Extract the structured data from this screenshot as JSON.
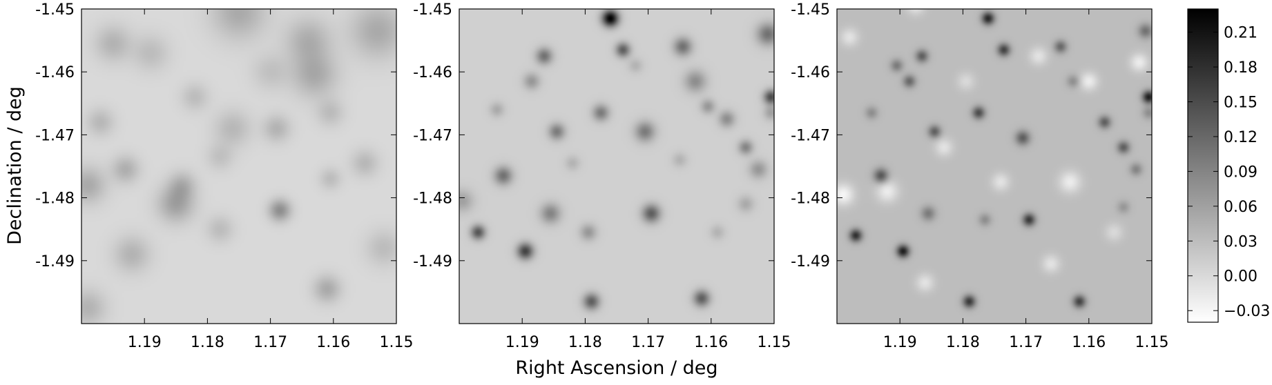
{
  "chart_data": {
    "type": "heatmap",
    "colormap": "gray_r",
    "xlabel": "Right Ascension / deg",
    "ylabel": "Declination / deg",
    "xlim": [
      1.2,
      1.15
    ],
    "ylim": [
      -1.5,
      -1.45
    ],
    "x_ticks": [
      1.19,
      1.18,
      1.17,
      1.16,
      1.15
    ],
    "x_tick_labels": [
      "1.19",
      "1.18",
      "1.17",
      "1.16",
      "1.15"
    ],
    "y_ticks": [
      -1.45,
      -1.46,
      -1.47,
      -1.48,
      -1.49
    ],
    "y_tick_labels": [
      "-1.45",
      "-1.46",
      "-1.47",
      "-1.48",
      "-1.49"
    ],
    "colorbar": {
      "range": [
        -0.04,
        0.23
      ],
      "ticks": [
        0.21,
        0.18,
        0.15,
        0.12,
        0.09,
        0.06,
        0.03,
        0.0,
        -0.03
      ],
      "tick_labels": [
        "0.21",
        "0.18",
        "0.15",
        "0.12",
        "0.09",
        "0.06",
        "0.03",
        "0.00",
        "−0.03"
      ]
    },
    "panels": [
      {
        "background": 0.0,
        "sources": [
          {
            "x": 1.175,
            "y": -1.4505,
            "amp": 0.05,
            "s": 0.003
          },
          {
            "x": 1.195,
            "y": -1.4555,
            "amp": 0.04,
            "s": 0.002
          },
          {
            "x": 1.189,
            "y": -1.457,
            "amp": 0.03,
            "s": 0.002
          },
          {
            "x": 1.164,
            "y": -1.455,
            "amp": 0.045,
            "s": 0.0025
          },
          {
            "x": 1.163,
            "y": -1.4605,
            "amp": 0.05,
            "s": 0.0025
          },
          {
            "x": 1.153,
            "y": -1.4535,
            "amp": 0.05,
            "s": 0.003
          },
          {
            "x": 1.182,
            "y": -1.464,
            "amp": 0.03,
            "s": 0.0015
          },
          {
            "x": 1.17,
            "y": -1.46,
            "amp": 0.025,
            "s": 0.002
          },
          {
            "x": 1.197,
            "y": -1.468,
            "amp": 0.035,
            "s": 0.0015
          },
          {
            "x": 1.176,
            "y": -1.469,
            "amp": 0.035,
            "s": 0.002
          },
          {
            "x": 1.169,
            "y": -1.469,
            "amp": 0.04,
            "s": 0.0015
          },
          {
            "x": 1.1605,
            "y": -1.4665,
            "amp": 0.03,
            "s": 0.0015
          },
          {
            "x": 1.155,
            "y": -1.4745,
            "amp": 0.035,
            "s": 0.0015
          },
          {
            "x": 1.193,
            "y": -1.4755,
            "amp": 0.045,
            "s": 0.0015
          },
          {
            "x": 1.199,
            "y": -1.478,
            "amp": 0.05,
            "s": 0.002
          },
          {
            "x": 1.185,
            "y": -1.481,
            "amp": 0.06,
            "s": 0.002
          },
          {
            "x": 1.184,
            "y": -1.478,
            "amp": 0.04,
            "s": 0.0015
          },
          {
            "x": 1.1685,
            "y": -1.482,
            "amp": 0.08,
            "s": 0.0012
          },
          {
            "x": 1.1605,
            "y": -1.477,
            "amp": 0.03,
            "s": 0.0012
          },
          {
            "x": 1.178,
            "y": -1.485,
            "amp": 0.03,
            "s": 0.0015
          },
          {
            "x": 1.192,
            "y": -1.489,
            "amp": 0.04,
            "s": 0.002
          },
          {
            "x": 1.161,
            "y": -1.4945,
            "amp": 0.05,
            "s": 0.0015
          },
          {
            "x": 1.199,
            "y": -1.4975,
            "amp": 0.04,
            "s": 0.002
          },
          {
            "x": 1.152,
            "y": -1.488,
            "amp": 0.03,
            "s": 0.002
          },
          {
            "x": 1.178,
            "y": -1.4735,
            "amp": 0.025,
            "s": 0.0015
          }
        ]
      },
      {
        "background": 0.01,
        "sources": [
          {
            "x": 1.176,
            "y": -1.4515,
            "amp": 0.22,
            "s": 0.0009
          },
          {
            "x": 1.174,
            "y": -1.4565,
            "amp": 0.12,
            "s": 0.0008
          },
          {
            "x": 1.1865,
            "y": -1.4575,
            "amp": 0.1,
            "s": 0.0009
          },
          {
            "x": 1.1645,
            "y": -1.456,
            "amp": 0.1,
            "s": 0.001
          },
          {
            "x": 1.151,
            "y": -1.454,
            "amp": 0.1,
            "s": 0.0012
          },
          {
            "x": 1.1885,
            "y": -1.4615,
            "amp": 0.06,
            "s": 0.0009
          },
          {
            "x": 1.1625,
            "y": -1.4615,
            "amp": 0.07,
            "s": 0.0012
          },
          {
            "x": 1.1505,
            "y": -1.464,
            "amp": 0.14,
            "s": 0.0008
          },
          {
            "x": 1.1775,
            "y": -1.4665,
            "amp": 0.09,
            "s": 0.0009
          },
          {
            "x": 1.1605,
            "y": -1.4655,
            "amp": 0.06,
            "s": 0.0008
          },
          {
            "x": 1.1575,
            "y": -1.4675,
            "amp": 0.07,
            "s": 0.0009
          },
          {
            "x": 1.1845,
            "y": -1.4695,
            "amp": 0.09,
            "s": 0.0009
          },
          {
            "x": 1.1705,
            "y": -1.4695,
            "amp": 0.09,
            "s": 0.0011
          },
          {
            "x": 1.1545,
            "y": -1.472,
            "amp": 0.08,
            "s": 0.0008
          },
          {
            "x": 1.193,
            "y": -1.4765,
            "amp": 0.1,
            "s": 0.001
          },
          {
            "x": 1.1525,
            "y": -1.4755,
            "amp": 0.06,
            "s": 0.001
          },
          {
            "x": 1.1855,
            "y": -1.4825,
            "amp": 0.08,
            "s": 0.0011
          },
          {
            "x": 1.1695,
            "y": -1.4825,
            "amp": 0.12,
            "s": 0.001
          },
          {
            "x": 1.197,
            "y": -1.4855,
            "amp": 0.13,
            "s": 0.0008
          },
          {
            "x": 1.1895,
            "y": -1.4885,
            "amp": 0.15,
            "s": 0.0009
          },
          {
            "x": 1.1795,
            "y": -1.4855,
            "amp": 0.06,
            "s": 0.0009
          },
          {
            "x": 1.179,
            "y": -1.4965,
            "amp": 0.12,
            "s": 0.0009
          },
          {
            "x": 1.1615,
            "y": -1.496,
            "amp": 0.12,
            "s": 0.0009
          },
          {
            "x": 1.1545,
            "y": -1.481,
            "amp": 0.04,
            "s": 0.0009
          },
          {
            "x": 1.194,
            "y": -1.466,
            "amp": 0.04,
            "s": 0.0008
          },
          {
            "x": 1.1995,
            "y": -1.4805,
            "amp": 0.05,
            "s": 0.0012
          },
          {
            "x": 1.1505,
            "y": -1.4665,
            "amp": 0.05,
            "s": 0.0008
          },
          {
            "x": 1.172,
            "y": -1.459,
            "amp": 0.03,
            "s": 0.0008
          },
          {
            "x": 1.182,
            "y": -1.4745,
            "amp": 0.03,
            "s": 0.0008
          },
          {
            "x": 1.165,
            "y": -1.474,
            "amp": 0.03,
            "s": 0.0008
          },
          {
            "x": 1.159,
            "y": -1.4855,
            "amp": 0.03,
            "s": 0.0008
          }
        ]
      },
      {
        "background": 0.03,
        "sources": [
          {
            "x": 1.176,
            "y": -1.4515,
            "amp": 0.16,
            "s": 0.0007
          },
          {
            "x": 1.1735,
            "y": -1.4565,
            "amp": 0.13,
            "s": 0.0007
          },
          {
            "x": 1.1865,
            "y": -1.4575,
            "amp": 0.1,
            "s": 0.0007
          },
          {
            "x": 1.1645,
            "y": -1.456,
            "amp": 0.09,
            "s": 0.0007
          },
          {
            "x": 1.151,
            "y": -1.4535,
            "amp": 0.08,
            "s": 0.0008
          },
          {
            "x": 1.1885,
            "y": -1.4615,
            "amp": 0.09,
            "s": 0.0007
          },
          {
            "x": 1.1905,
            "y": -1.459,
            "amp": 0.07,
            "s": 0.0007
          },
          {
            "x": 1.1505,
            "y": -1.464,
            "amp": 0.17,
            "s": 0.0007
          },
          {
            "x": 1.1775,
            "y": -1.4665,
            "amp": 0.12,
            "s": 0.0007
          },
          {
            "x": 1.1575,
            "y": -1.468,
            "amp": 0.1,
            "s": 0.0007
          },
          {
            "x": 1.1845,
            "y": -1.4695,
            "amp": 0.1,
            "s": 0.0007
          },
          {
            "x": 1.1705,
            "y": -1.4705,
            "amp": 0.1,
            "s": 0.0008
          },
          {
            "x": 1.1545,
            "y": -1.472,
            "amp": 0.1,
            "s": 0.0007
          },
          {
            "x": 1.193,
            "y": -1.4765,
            "amp": 0.11,
            "s": 0.0008
          },
          {
            "x": 1.1525,
            "y": -1.4755,
            "amp": 0.06,
            "s": 0.0007
          },
          {
            "x": 1.1855,
            "y": -1.4825,
            "amp": 0.07,
            "s": 0.0008
          },
          {
            "x": 1.1695,
            "y": -1.4835,
            "amp": 0.14,
            "s": 0.0007
          },
          {
            "x": 1.197,
            "y": -1.486,
            "amp": 0.15,
            "s": 0.0007
          },
          {
            "x": 1.1895,
            "y": -1.4885,
            "amp": 0.17,
            "s": 0.0007
          },
          {
            "x": 1.179,
            "y": -1.4965,
            "amp": 0.14,
            "s": 0.0007
          },
          {
            "x": 1.1615,
            "y": -1.4965,
            "amp": 0.13,
            "s": 0.0007
          },
          {
            "x": 1.1765,
            "y": -1.4835,
            "amp": 0.05,
            "s": 0.0007
          },
          {
            "x": 1.1625,
            "y": -1.4615,
            "amp": 0.05,
            "s": 0.0007
          },
          {
            "x": 1.1945,
            "y": -1.4665,
            "amp": 0.05,
            "s": 0.0007
          },
          {
            "x": 1.1545,
            "y": -1.4815,
            "amp": 0.04,
            "s": 0.0007
          },
          {
            "x": 1.1505,
            "y": -1.4665,
            "amp": 0.05,
            "s": 0.0007
          },
          {
            "x": 1.16,
            "y": -1.4615,
            "amp": -0.05,
            "s": 0.001
          },
          {
            "x": 1.183,
            "y": -1.472,
            "amp": -0.04,
            "s": 0.001
          },
          {
            "x": 1.192,
            "y": -1.479,
            "amp": -0.05,
            "s": 0.0012
          },
          {
            "x": 1.163,
            "y": -1.4775,
            "amp": -0.05,
            "s": 0.0012
          },
          {
            "x": 1.199,
            "y": -1.4795,
            "amp": -0.06,
            "s": 0.0012
          },
          {
            "x": 1.1875,
            "y": -1.4495,
            "amp": -0.04,
            "s": 0.001
          },
          {
            "x": 1.168,
            "y": -1.4575,
            "amp": -0.04,
            "s": 0.001
          },
          {
            "x": 1.152,
            "y": -1.4585,
            "amp": -0.05,
            "s": 0.001
          },
          {
            "x": 1.198,
            "y": -1.4545,
            "amp": -0.04,
            "s": 0.001
          },
          {
            "x": 1.174,
            "y": -1.4775,
            "amp": -0.04,
            "s": 0.001
          },
          {
            "x": 1.186,
            "y": -1.4935,
            "amp": -0.04,
            "s": 0.001
          },
          {
            "x": 1.166,
            "y": -1.4905,
            "amp": -0.04,
            "s": 0.001
          },
          {
            "x": 1.156,
            "y": -1.4855,
            "amp": -0.03,
            "s": 0.001
          },
          {
            "x": 1.1795,
            "y": -1.4615,
            "amp": -0.03,
            "s": 0.001
          }
        ]
      }
    ]
  }
}
